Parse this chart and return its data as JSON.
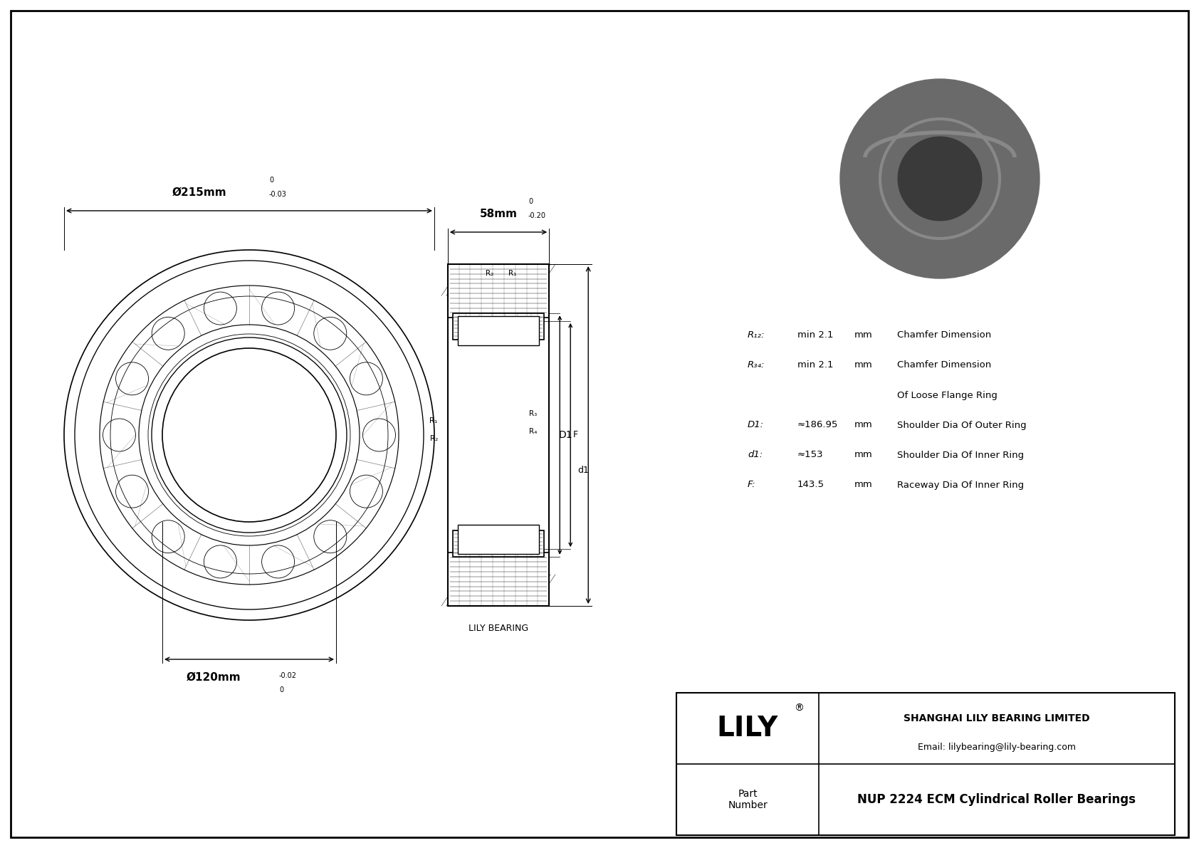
{
  "bg_color": "#ffffff",
  "border_color": "#000000",
  "title": "NUP 2224 ECM Cylindrical Roller Bearings",
  "company": "SHANGHAI LILY BEARING LIMITED",
  "email": "Email: lilybearing@lily-bearing.com",
  "part_label": "Part\nNumber",
  "lily_text": "LILY",
  "lily_bearing_label": "LILY BEARING",
  "dim_outer": "Ø215mm",
  "dim_outer_tol_top": "0",
  "dim_outer_tol_bot": "-0.03",
  "dim_inner": "Ø120mm",
  "dim_inner_tol_top": "0",
  "dim_inner_tol_bot": "-0.02",
  "dim_width": "58mm",
  "dim_width_tol_top": "0",
  "dim_width_tol_bot": "-0.20",
  "params": [
    {
      "label": "R₁₂:",
      "value": "min 2.1",
      "unit": "mm",
      "desc": "Chamfer Dimension"
    },
    {
      "label": "R₃₄:",
      "value": "min 2.1",
      "unit": "mm",
      "desc": "Chamfer Dimension"
    },
    {
      "label": "",
      "value": "",
      "unit": "",
      "desc": "Of Loose Flange Ring"
    },
    {
      "label": "D1:",
      "value": "≈186.95",
      "unit": "mm",
      "desc": "Shoulder Dia Of Outer Ring"
    },
    {
      "label": "d1:",
      "value": "≈153",
      "unit": "mm",
      "desc": "Shoulder Dia Of Inner Ring"
    },
    {
      "label": "F:",
      "value": "143.5",
      "unit": "mm",
      "desc": "Raceway Dia Of Inner Ring"
    }
  ],
  "cross_labels": [
    "R₂",
    "R₁",
    "R₁",
    "R₂",
    "R₃",
    "R₄"
  ],
  "dim_labels_side": [
    "D1",
    "F",
    "d1"
  ]
}
